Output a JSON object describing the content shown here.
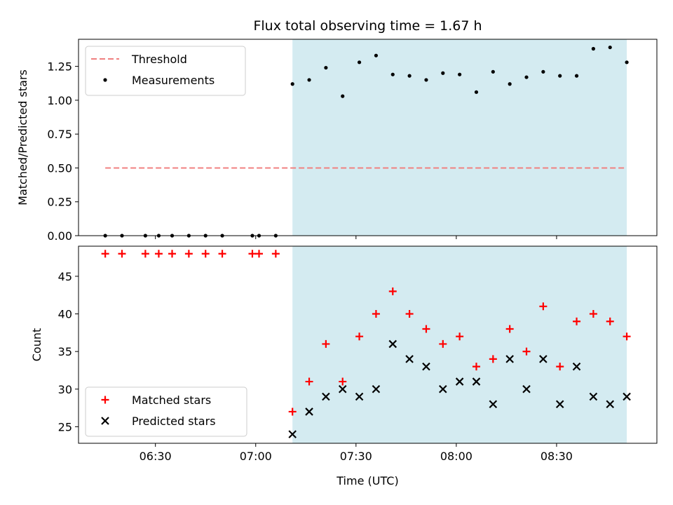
{
  "chart_data": [
    {
      "type": "scatter",
      "panel": "top",
      "title": "Flux total observing time = 1.67 h",
      "xlabel": "",
      "ylabel": "Matched/Predicted stars",
      "ylim": [
        0,
        1.45
      ],
      "yticks": [
        0.0,
        0.25,
        0.5,
        0.75,
        1.0,
        1.25
      ],
      "ytick_labels": [
        "0.00",
        "0.25",
        "0.50",
        "0.75",
        "1.00",
        "1.25"
      ],
      "xlim": [
        "06:07",
        "09:00"
      ],
      "shaded_interval": [
        "07:11",
        "08:51"
      ],
      "shaded_color": "#d4ebf1",
      "series": [
        {
          "name": "Threshold",
          "kind": "dashed-line",
          "color": "#f08080",
          "x": [
            "06:15",
            "08:51"
          ],
          "y": [
            0.5,
            0.5
          ]
        },
        {
          "name": "Measurements",
          "kind": "dot",
          "color": "#000000",
          "x": [
            "06:15",
            "06:20",
            "06:27",
            "06:31",
            "06:35",
            "06:40",
            "06:45",
            "06:50",
            "06:59",
            "07:01",
            "07:06",
            "07:11",
            "07:16",
            "07:21",
            "07:26",
            "07:31",
            "07:36",
            "07:41",
            "07:46",
            "07:51",
            "07:56",
            "08:01",
            "08:06",
            "08:11",
            "08:16",
            "08:21",
            "08:26",
            "08:31",
            "08:36",
            "08:41",
            "08:46",
            "08:51"
          ],
          "y": [
            0,
            0,
            0,
            0,
            0,
            0,
            0,
            0,
            0,
            0,
            0,
            1.12,
            1.15,
            1.24,
            1.03,
            1.28,
            1.33,
            1.19,
            1.18,
            1.15,
            1.2,
            1.19,
            1.06,
            1.21,
            1.12,
            1.17,
            1.21,
            1.18,
            1.18,
            1.38,
            1.39,
            1.28
          ]
        }
      ],
      "legend": "upper-left"
    },
    {
      "type": "scatter",
      "panel": "bottom",
      "title": "",
      "xlabel": "Time (UTC)",
      "ylabel": "Count",
      "ylim": [
        22.8,
        49
      ],
      "yticks": [
        25,
        30,
        35,
        40,
        45
      ],
      "ytick_labels": [
        "25",
        "30",
        "35",
        "40",
        "45"
      ],
      "xlim": [
        "06:07",
        "09:00"
      ],
      "xticks": [
        "06:30",
        "07:00",
        "07:30",
        "08:00",
        "08:30"
      ],
      "xtick_labels": [
        "06:30",
        "07:00",
        "07:30",
        "08:00",
        "08:30"
      ],
      "shaded_interval": [
        "07:11",
        "08:51"
      ],
      "shaded_color": "#d4ebf1",
      "series": [
        {
          "name": "Matched stars",
          "kind": "plus",
          "color": "#ff0000",
          "x": [
            "06:15",
            "06:20",
            "06:27",
            "06:31",
            "06:35",
            "06:40",
            "06:45",
            "06:50",
            "06:59",
            "07:01",
            "07:06",
            "07:11",
            "07:16",
            "07:21",
            "07:26",
            "07:31",
            "07:36",
            "07:41",
            "07:46",
            "07:51",
            "07:56",
            "08:01",
            "08:06",
            "08:11",
            "08:16",
            "08:21",
            "08:26",
            "08:31",
            "08:36",
            "08:41",
            "08:46",
            "08:51"
          ],
          "y": [
            48,
            48,
            48,
            48,
            48,
            48,
            48,
            48,
            48,
            48,
            48,
            27,
            31,
            36,
            31,
            37,
            40,
            43,
            40,
            38,
            36,
            37,
            33,
            34,
            38,
            35,
            41,
            33,
            39,
            40,
            39,
            37
          ]
        },
        {
          "name": "Predicted stars",
          "kind": "x",
          "color": "#000000",
          "x": [
            "07:11",
            "07:16",
            "07:21",
            "07:26",
            "07:31",
            "07:36",
            "07:41",
            "07:46",
            "07:51",
            "07:56",
            "08:01",
            "08:06",
            "08:11",
            "08:16",
            "08:21",
            "08:26",
            "08:31",
            "08:36",
            "08:41",
            "08:46",
            "08:51"
          ],
          "y": [
            24,
            27,
            29,
            30,
            29,
            30,
            36,
            34,
            33,
            30,
            31,
            31,
            28,
            34,
            30,
            34,
            28,
            33,
            29,
            28,
            29
          ]
        }
      ],
      "legend": "lower-left"
    }
  ]
}
